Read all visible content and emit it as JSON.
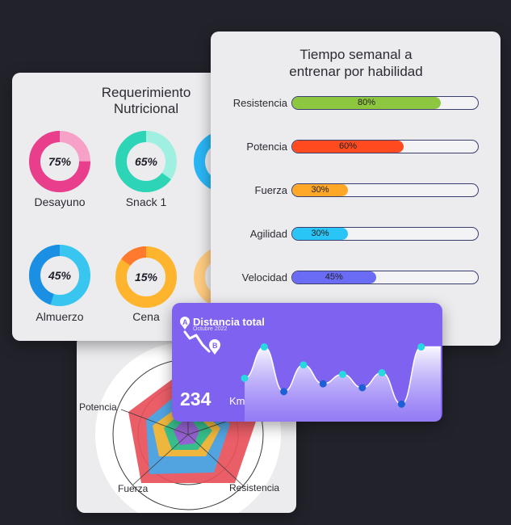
{
  "colors": {
    "background": "#22222b",
    "card": "#ececef",
    "distance_card": "#7f63f0",
    "track_border": "#3a3d6e"
  },
  "nutrition": {
    "title_line1": "Requerimiento",
    "title_line2": "Nutricional",
    "items": [
      {
        "label": "Desayuno",
        "value_text": "75%",
        "value": 0.75,
        "color": "#e83e8c",
        "light": "#f8a1c8"
      },
      {
        "label": "Snack 1",
        "value_text": "65%",
        "value": 0.65,
        "color": "#2dd4b5",
        "light": "#9ff0e0"
      },
      {
        "label": "Almuerzo",
        "value_text": "45%",
        "value": 0.45,
        "color": "#1a8fe3",
        "light": "#38c5f0"
      },
      {
        "label": "Cena",
        "value_text": "15%",
        "value": 0.15,
        "color": "#ff7a2e",
        "light": "#ffb42e"
      }
    ]
  },
  "training": {
    "title_line1": "Tiempo semanal a",
    "title_line2": "entrenar por habilidad",
    "bars": [
      {
        "label": "Resistencia",
        "value_text": "80%",
        "value": 0.8,
        "color": "#8dc63f"
      },
      {
        "label": "Potencia",
        "value_text": "60%",
        "value": 0.6,
        "color": "#ff4b1f"
      },
      {
        "label": "Fuerza",
        "value_text": "30%",
        "value": 0.3,
        "color": "#ffa726"
      },
      {
        "label": "Agilidad",
        "value_text": "30%",
        "value": 0.3,
        "color": "#29c5f6"
      },
      {
        "label": "Velocidad",
        "value_text": "45%",
        "value": 0.45,
        "color": "#6b6cf6"
      }
    ]
  },
  "radar": {
    "labels": {
      "top_left": "Potencia",
      "bottom_left": "Fuerza",
      "bottom_right": "Resistencia"
    }
  },
  "distance": {
    "title": "Distancia total",
    "subtitle": "Octubre 2022",
    "value": "234",
    "unit": "Km",
    "marker_a": "A",
    "marker_b": "B"
  },
  "chart_data": {
    "type": "area",
    "x": [
      1,
      2,
      3,
      4,
      5,
      6,
      7,
      8,
      9,
      10,
      11
    ],
    "values": [
      0.45,
      0.85,
      0.28,
      0.62,
      0.38,
      0.5,
      0.33,
      0.52,
      0.12,
      0.85,
      0.85
    ],
    "ylim": [
      0,
      1
    ]
  }
}
